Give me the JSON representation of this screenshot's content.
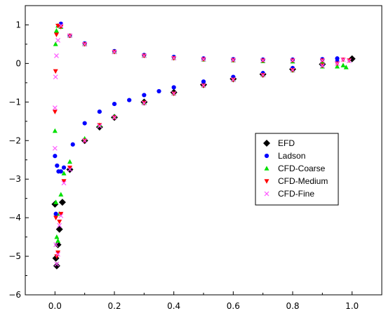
{
  "chart_data": {
    "type": "scatter",
    "title": "",
    "xlabel": "",
    "ylabel": "",
    "xlim": [
      -0.1,
      1.1
    ],
    "ylim": [
      -6,
      1.5
    ],
    "x_ticks": [
      0.0,
      0.2,
      0.4,
      0.6,
      0.8,
      1.0
    ],
    "x_tick_labels": [
      "0.0",
      "0.2",
      "0.4",
      "0.6",
      "0.8",
      "1.0"
    ],
    "y_ticks": [
      -6,
      -5,
      -4,
      -3,
      -2,
      -1,
      0,
      1
    ],
    "y_tick_labels": [
      "−6",
      "−5",
      "−4",
      "−3",
      "−2",
      "−1",
      "0",
      "1"
    ],
    "grid": false,
    "legend_position": "right",
    "series": [
      {
        "name": "EFD",
        "marker": "diamond",
        "color": "#000000",
        "x": [
          0.0,
          0.003,
          0.006,
          0.01,
          0.015,
          0.025,
          0.05,
          0.1,
          0.15,
          0.2,
          0.3,
          0.4,
          0.5,
          0.6,
          0.7,
          0.8,
          0.9,
          1.0
        ],
        "y": [
          -3.65,
          -5.05,
          -5.25,
          -4.7,
          -4.3,
          -3.6,
          -2.75,
          -2.0,
          -1.65,
          -1.4,
          -1.0,
          -0.75,
          -0.55,
          -0.4,
          -0.28,
          -0.15,
          -0.02,
          0.12
        ]
      },
      {
        "name": "Ladson",
        "marker": "circle",
        "color": "#0000ff",
        "x": [
          0.0,
          0.003,
          0.007,
          0.012,
          0.02,
          0.03,
          0.06,
          0.1,
          0.15,
          0.2,
          0.25,
          0.3,
          0.35,
          0.4,
          0.5,
          0.6,
          0.7,
          0.8,
          0.9,
          0.95,
          0.02,
          0.05,
          0.1,
          0.2,
          0.3,
          0.4,
          0.5,
          0.6,
          0.7,
          0.8,
          0.9,
          0.95
        ],
        "y": [
          -2.4,
          -3.9,
          -2.65,
          -2.8,
          -2.8,
          -2.7,
          -2.1,
          -1.55,
          -1.25,
          -1.05,
          -0.95,
          -0.82,
          -0.72,
          -0.62,
          -0.47,
          -0.35,
          -0.25,
          -0.12,
          -0.03,
          0.05,
          1.03,
          0.72,
          0.52,
          0.32,
          0.22,
          0.17,
          0.13,
          0.11,
          0.1,
          0.1,
          0.11,
          0.13
        ]
      },
      {
        "name": "CFD-Coarse",
        "marker": "triangle",
        "color": "#00e000",
        "x": [
          0.0,
          0.003,
          0.006,
          0.01,
          0.015,
          0.02,
          0.03,
          0.05,
          0.1,
          0.15,
          0.2,
          0.3,
          0.4,
          0.5,
          0.6,
          0.7,
          0.8,
          0.9,
          0.95,
          0.98,
          0.002,
          0.005,
          0.01,
          0.02,
          0.05,
          0.1,
          0.2,
          0.3,
          0.4,
          0.5,
          0.6,
          0.7,
          0.8,
          0.9,
          0.97
        ],
        "y": [
          -1.75,
          -3.6,
          -4.5,
          -4.6,
          -3.9,
          -3.4,
          -2.85,
          -2.55,
          -1.95,
          -1.6,
          -1.38,
          -1.02,
          -0.78,
          -0.57,
          -0.42,
          -0.3,
          -0.18,
          -0.08,
          -0.08,
          -0.1,
          0.5,
          0.85,
          0.98,
          0.95,
          0.72,
          0.5,
          0.3,
          0.2,
          0.14,
          0.1,
          0.08,
          0.06,
          0.05,
          0.03,
          -0.05
        ]
      },
      {
        "name": "CFD-Medium",
        "marker": "triangle-down",
        "color": "#ff0000",
        "x": [
          0.0,
          0.003,
          0.006,
          0.01,
          0.015,
          0.02,
          0.03,
          0.05,
          0.1,
          0.15,
          0.2,
          0.3,
          0.4,
          0.5,
          0.6,
          0.7,
          0.8,
          0.9,
          0.95,
          0.99,
          0.002,
          0.005,
          0.01,
          0.02,
          0.05,
          0.1,
          0.2,
          0.3,
          0.4,
          0.5,
          0.6,
          0.7,
          0.8,
          0.9,
          0.97
        ],
        "y": [
          -1.25,
          -4.0,
          -5.0,
          -4.9,
          -4.1,
          -3.9,
          -3.05,
          -2.7,
          -2.0,
          -1.6,
          -1.4,
          -1.02,
          -0.78,
          -0.57,
          -0.42,
          -0.3,
          -0.17,
          -0.05,
          0.0,
          0.08,
          -0.2,
          0.75,
          0.98,
          0.95,
          0.72,
          0.5,
          0.3,
          0.2,
          0.14,
          0.11,
          0.09,
          0.08,
          0.08,
          0.08,
          0.1
        ]
      },
      {
        "name": "CFD-Fine",
        "marker": "x",
        "color": "#ff55ff",
        "x": [
          0.0,
          0.003,
          0.006,
          0.01,
          0.015,
          0.02,
          0.03,
          0.05,
          0.1,
          0.15,
          0.2,
          0.3,
          0.4,
          0.5,
          0.6,
          0.7,
          0.8,
          0.9,
          0.95,
          0.99,
          0.0,
          0.002,
          0.005,
          0.01,
          0.02,
          0.05,
          0.1,
          0.2,
          0.3,
          0.4,
          0.5,
          0.6,
          0.7,
          0.8,
          0.9,
          0.97
        ],
        "y": [
          -2.2,
          -4.7,
          -5.2,
          -4.95,
          -4.2,
          -3.95,
          -3.1,
          -2.75,
          -2.0,
          -1.62,
          -1.4,
          -1.03,
          -0.78,
          -0.57,
          -0.42,
          -0.3,
          -0.17,
          -0.06,
          0.0,
          0.07,
          -1.15,
          -0.35,
          0.2,
          0.6,
          0.98,
          0.72,
          0.5,
          0.3,
          0.2,
          0.14,
          0.11,
          0.09,
          0.08,
          0.08,
          0.08,
          0.1
        ]
      }
    ]
  }
}
